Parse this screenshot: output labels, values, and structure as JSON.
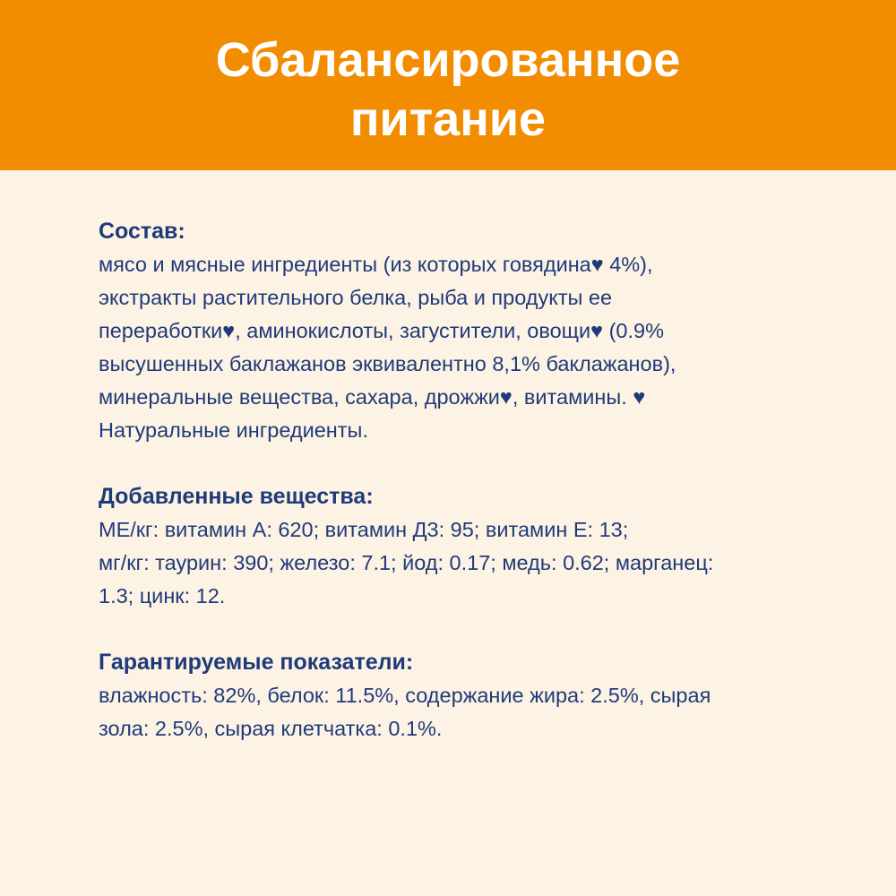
{
  "header": {
    "title_lines": [
      "Сбалансированное",
      "питание"
    ]
  },
  "colors": {
    "banner": "#F28C00",
    "background": "#FDF3E4",
    "text": "#1F3A7A"
  },
  "sections": [
    {
      "heading": "Состав:",
      "lines": [
        "мясо и мясные ингредиенты (из которых говядина♥ 4%),",
        "экстракты растительного белка, рыба и продукты ее",
        "переработки♥, аминокислоты, загустители, овощи♥ (0.9%",
        "высушенных баклажанов эквивалентно 8,1% баклажанов),",
        "минеральные вещества, сахара, дрожжи♥, витамины. ♥",
        "Натуральные ингредиенты."
      ]
    },
    {
      "heading": "Добавленные вещества:",
      "lines": [
        "МЕ/кг: витамин А: 620; витамин Д3: 95; витамин Е: 13;",
        "мг/кг: таурин: 390; железо: 7.1; йод: 0.17; медь: 0.62; марганец:",
        "1.3; цинк: 12."
      ]
    },
    {
      "heading": "Гарантируемые показатели:",
      "lines": [
        "влажность: 82%, белок: 11.5%, содержание жира: 2.5%, сырая",
        "зола: 2.5%, сырая клетчатка: 0.1%."
      ]
    }
  ]
}
